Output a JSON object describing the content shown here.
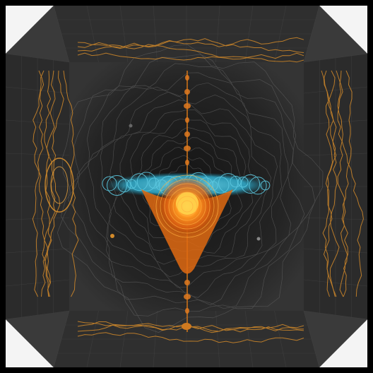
{
  "artwork": {
    "icon": "abstract-art-icon",
    "colors": {
      "border": "#000000",
      "corner": "#f4f4f4",
      "wall": "#2a2a2a",
      "wall_dark": "#1a1a1a",
      "grid": "#3c3c3c",
      "vein": "#d38a2a",
      "core": "#ff8a1a",
      "core_hot": "#ffd24a",
      "cyan": "#3bb3cf"
    }
  }
}
